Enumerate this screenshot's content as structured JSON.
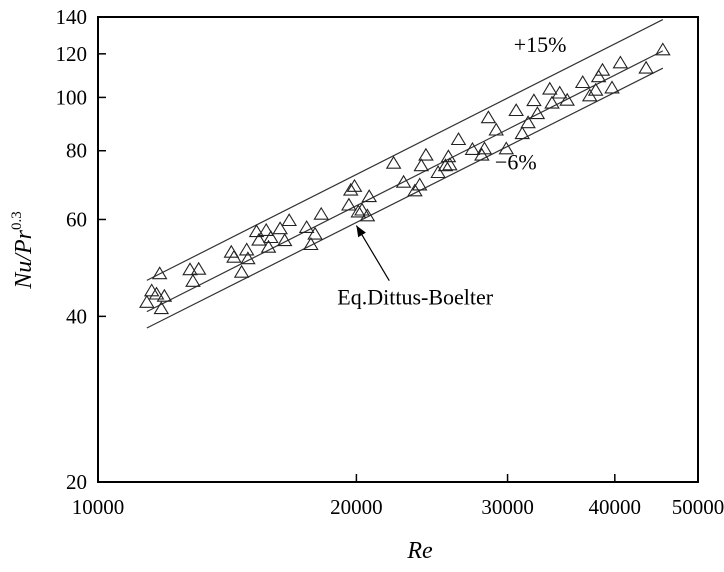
{
  "chart_data": {
    "type": "scatter",
    "x_scale": "log",
    "y_scale": "log",
    "xlim": [
      10000,
      50000
    ],
    "ylim": [
      20,
      140
    ],
    "x_ticks": [
      10000,
      20000,
      30000,
      40000,
      50000
    ],
    "x_tick_labels": [
      "10000",
      "20000",
      "30000",
      "40000",
      "50000"
    ],
    "y_ticks": [
      20,
      40,
      60,
      80,
      100,
      120,
      140
    ],
    "y_tick_labels": [
      "20",
      "40",
      "60",
      "80",
      "100",
      "120",
      "140"
    ],
    "xlabel": "Re",
    "ylabel_main": "Nu/Pr",
    "ylabel_sup": "0.3",
    "grid": false,
    "marker": "open-triangle",
    "points": [
      [
        11400,
        42.4
      ],
      [
        11550,
        44.5
      ],
      [
        11700,
        43.9
      ],
      [
        11800,
        47.8
      ],
      [
        11850,
        41.3
      ],
      [
        11950,
        43.5
      ],
      [
        12800,
        48.6
      ],
      [
        12900,
        46.3
      ],
      [
        13100,
        48.7
      ],
      [
        14300,
        52.3
      ],
      [
        14400,
        51.2
      ],
      [
        14700,
        48.1
      ],
      [
        14900,
        52.8
      ],
      [
        14950,
        50.9
      ],
      [
        15300,
        57.0
      ],
      [
        15400,
        55.0
      ],
      [
        15700,
        57.3
      ],
      [
        15800,
        53.4
      ],
      [
        15900,
        55.6
      ],
      [
        16300,
        57.7
      ],
      [
        16500,
        54.9
      ],
      [
        16700,
        59.7
      ],
      [
        17500,
        58.0
      ],
      [
        17700,
        54.0
      ],
      [
        17900,
        56.4
      ],
      [
        18200,
        61.3
      ],
      [
        19600,
        63.7
      ],
      [
        19700,
        67.8
      ],
      [
        19900,
        68.9
      ],
      [
        20100,
        61.9
      ],
      [
        20300,
        62.4
      ],
      [
        20600,
        60.9
      ],
      [
        20700,
        66.0
      ],
      [
        22100,
        75.9
      ],
      [
        22700,
        70.1
      ],
      [
        23400,
        67.6
      ],
      [
        23700,
        69.3
      ],
      [
        23800,
        75.1
      ],
      [
        24100,
        78.5
      ],
      [
        24900,
        73.0
      ],
      [
        25400,
        75.1
      ],
      [
        25600,
        78.0
      ],
      [
        25700,
        75.4
      ],
      [
        26300,
        83.8
      ],
      [
        27300,
        80.4
      ],
      [
        28000,
        78.5
      ],
      [
        28200,
        80.6
      ],
      [
        28500,
        91.8
      ],
      [
        29100,
        87.2
      ],
      [
        29900,
        80.6
      ],
      [
        30700,
        94.6
      ],
      [
        31200,
        85.9
      ],
      [
        31700,
        89.9
      ],
      [
        32200,
        98.6
      ],
      [
        32500,
        93.4
      ],
      [
        33600,
        103.5
      ],
      [
        33800,
        97.6
      ],
      [
        34500,
        101.8
      ],
      [
        35200,
        98.8
      ],
      [
        36700,
        106.4
      ],
      [
        37400,
        100.6
      ],
      [
        38000,
        103.0
      ],
      [
        38300,
        109.0
      ],
      [
        38700,
        112.0
      ],
      [
        39700,
        104.0
      ],
      [
        40600,
        115.5
      ],
      [
        43500,
        113.0
      ],
      [
        45500,
        122.0
      ]
    ],
    "lines": [
      {
        "label": "+15%",
        "from": [
          11400,
          46.5
        ],
        "to": [
          45500,
          138.5
        ]
      },
      {
        "label": "",
        "from": [
          11400,
          40.8
        ],
        "to": [
          45500,
          121.5
        ]
      },
      {
        "label": "−6%",
        "from": [
          11400,
          38.1
        ],
        "to": [
          45500,
          113.0
        ]
      }
    ],
    "annotations": [
      {
        "text": "+15%",
        "x": 30500,
        "y": 121
      },
      {
        "text": "−6%",
        "x": 29000,
        "y": 74
      },
      {
        "text": "Eq.Dittus-Boelter",
        "x": 19000,
        "y": 42,
        "arrow_to": [
          20000,
          58.5
        ]
      }
    ]
  }
}
